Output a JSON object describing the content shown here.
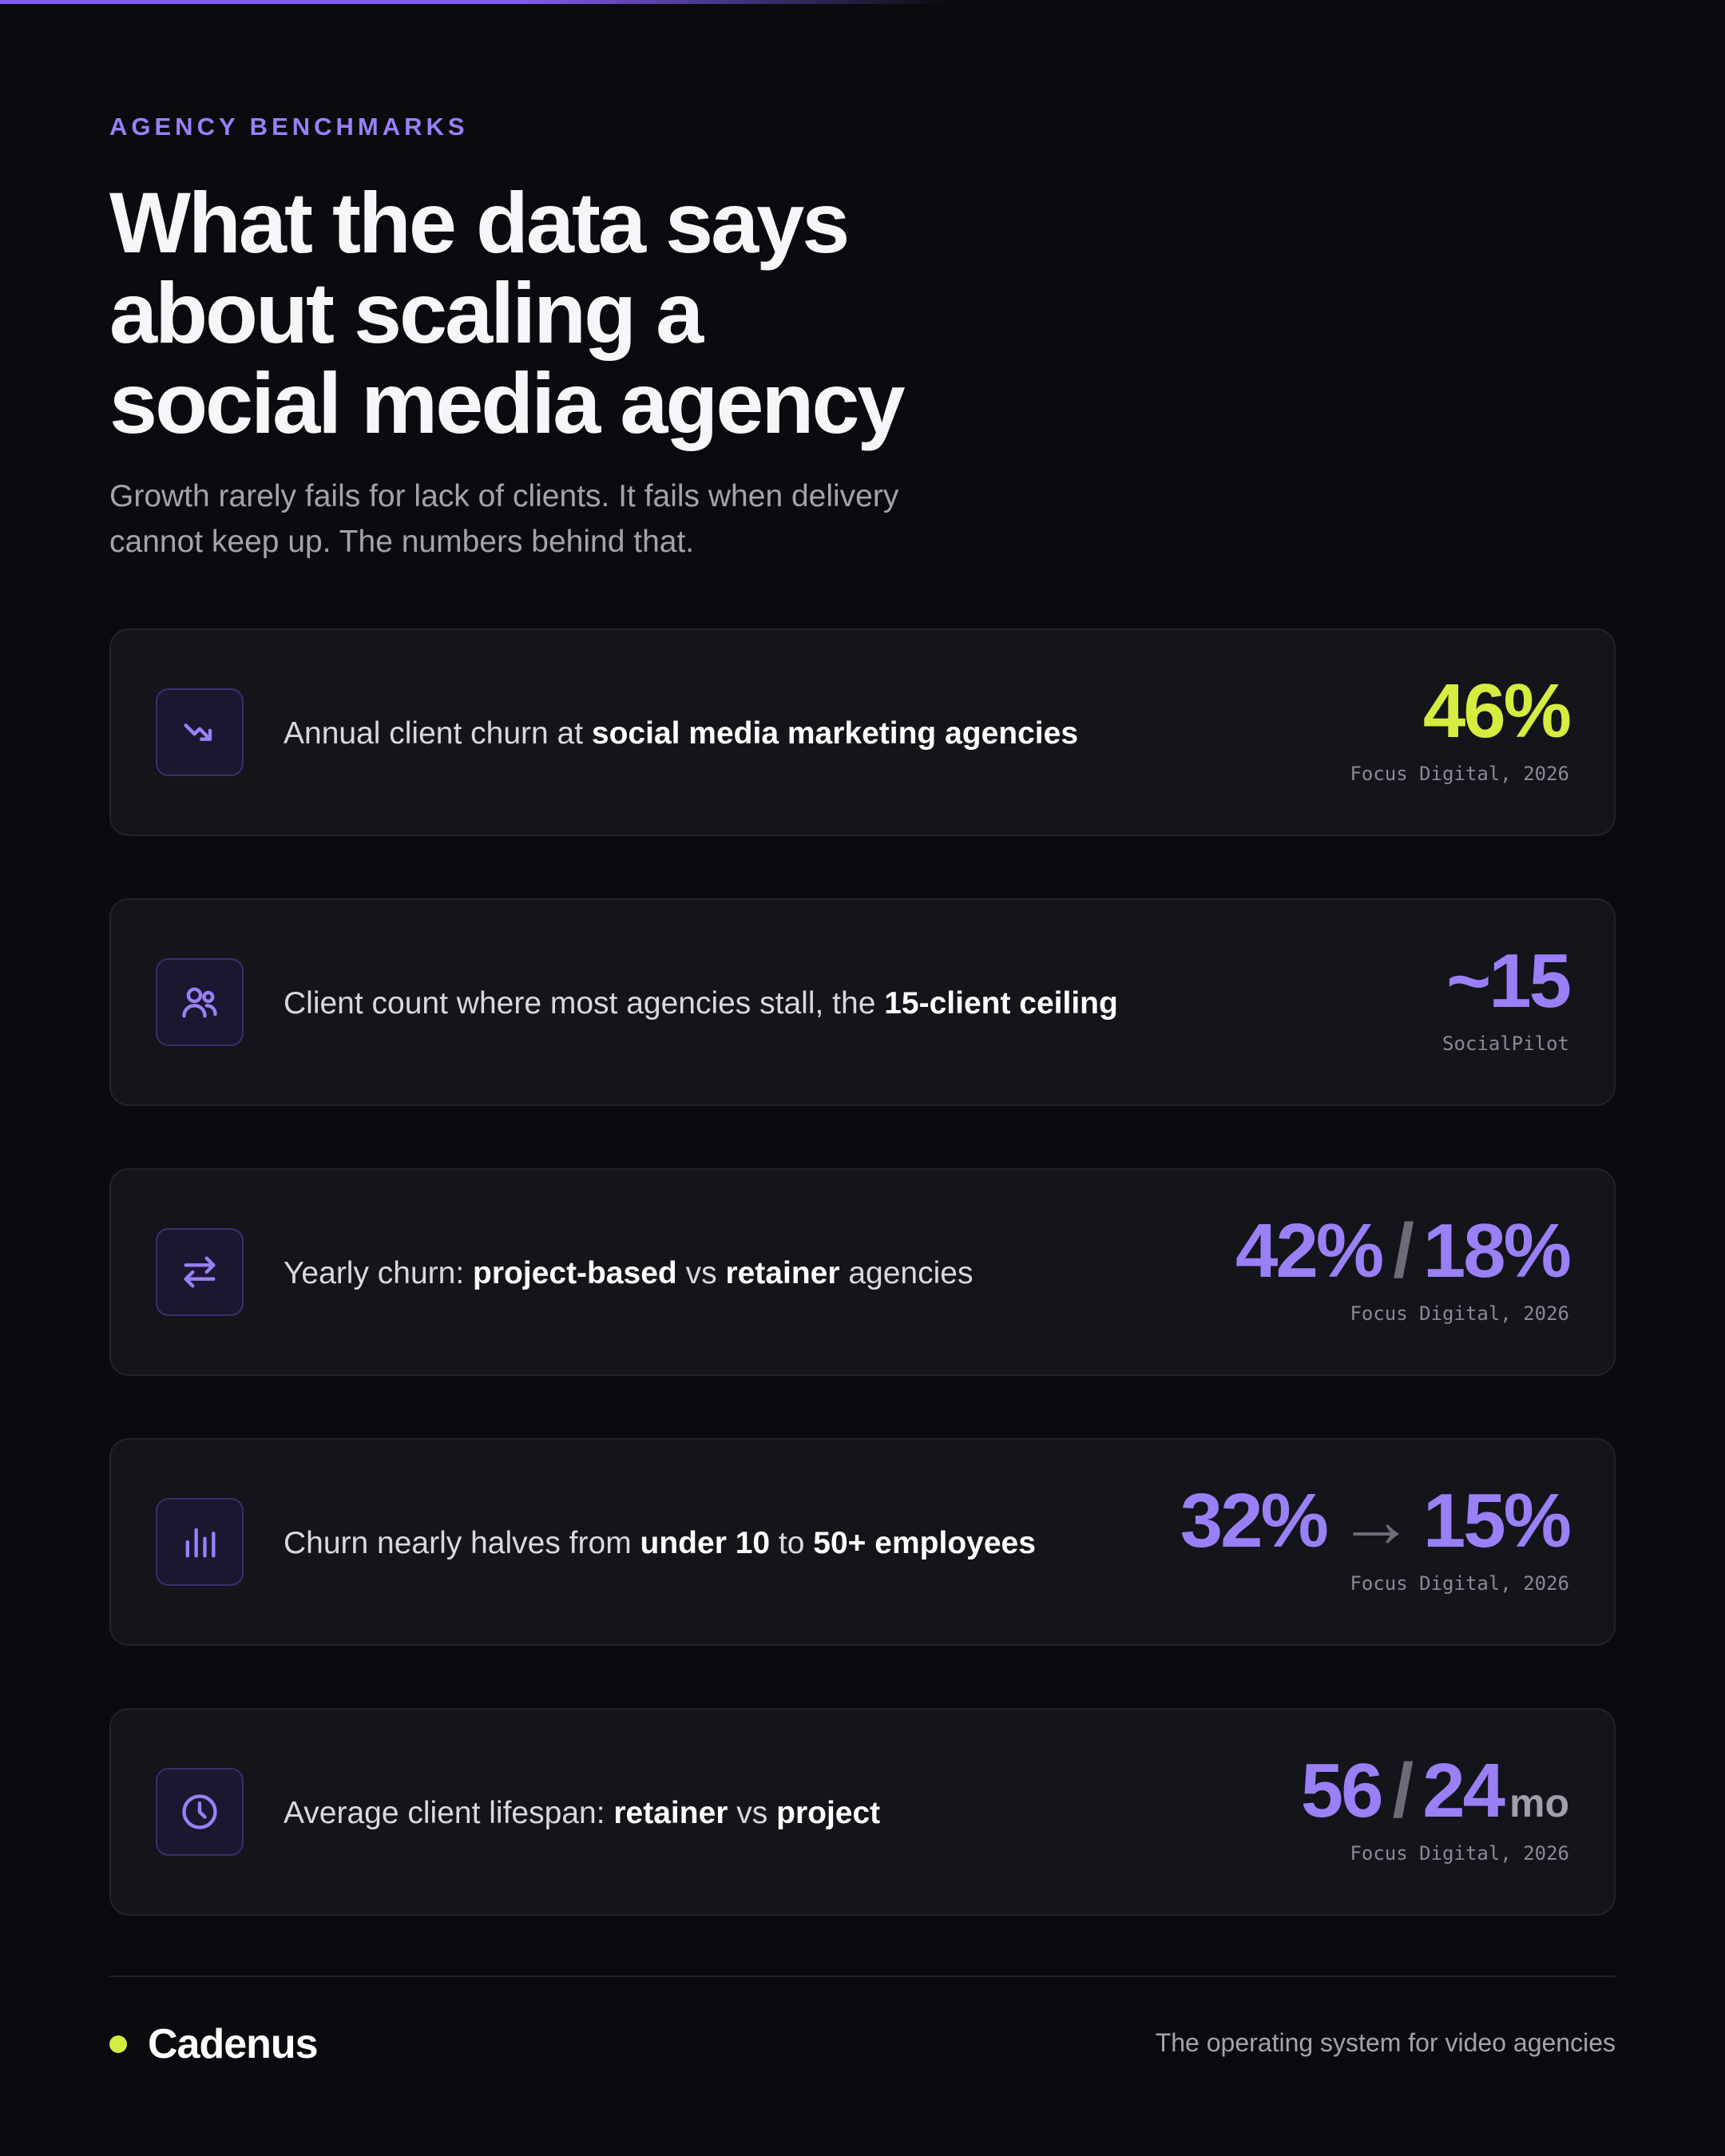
{
  "header": {
    "eyebrow": "AGENCY BENCHMARKS",
    "title_lines": [
      "What the data says",
      "about scaling a",
      "social media agency"
    ],
    "subtitle_lines": [
      "Growth rarely fails for lack of clients. It fails when delivery",
      "cannot keep up. The numbers behind that."
    ]
  },
  "stats": [
    {
      "icon": "trending-down-icon",
      "label": {
        "t1": "Annual client churn at ",
        "b1": "social media marketing agencies"
      },
      "value": {
        "main": "46%"
      },
      "source": "Focus Digital, 2026",
      "accent": "#d6ec40"
    },
    {
      "icon": "users-icon",
      "label": {
        "t1": "Client count where most agencies stall, the ",
        "b1": "15-client ceiling"
      },
      "value": {
        "main": "~15"
      },
      "source": "SocialPilot",
      "accent": "#9a80f7"
    },
    {
      "icon": "swap-arrows-icon",
      "label": {
        "t1": "Yearly churn: ",
        "b1": "project-based",
        "t2": " vs ",
        "b2": "retainer",
        "t3": " agencies"
      },
      "value": {
        "a": "42%",
        "sep": "/",
        "b": "18%"
      },
      "source": "Focus Digital, 2026",
      "accent": "#9a80f7"
    },
    {
      "icon": "bar-chart-icon",
      "label": {
        "t1": "Churn nearly halves from ",
        "b1": "under 10",
        "t2": " to ",
        "b2": "50+ employees"
      },
      "value": {
        "a": "32%",
        "sep": "→",
        "b": "15%"
      },
      "source": "Focus Digital, 2026",
      "accent": "#9a80f7"
    },
    {
      "icon": "clock-icon",
      "label": {
        "t1": "Average client lifespan: ",
        "b1": "retainer",
        "t2": " vs ",
        "b2": "project"
      },
      "value": {
        "a": "56",
        "sep": "/",
        "b": "24",
        "unit": "mo"
      },
      "source": "Focus Digital, 2026",
      "accent": "#9a80f7"
    }
  ],
  "footer": {
    "brand": "Cadenus",
    "tagline": "The operating system for video agencies",
    "brand_dot_color": "#d6ec40"
  }
}
